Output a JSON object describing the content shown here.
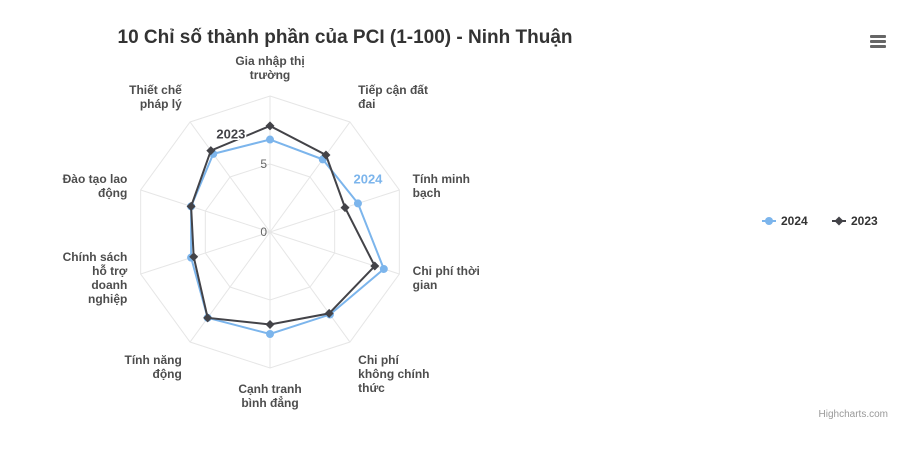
{
  "chart_data": {
    "type": "radar",
    "title": "10 Chỉ số thành phần của PCI (1-100) - Ninh Thuận",
    "categories": [
      "Gia nhập thị trường",
      "Tiếp cận đất đai",
      "Tính minh bạch",
      "Chi phí thời gian",
      "Chi phí không chính thức",
      "Cạnh tranh bình đẳng",
      "Tính năng động",
      "Chính sách hỗ trợ doanh nghiệp",
      "Đào tạo lao động",
      "Thiết chế pháp lý"
    ],
    "series": [
      {
        "name": "2024",
        "color": "#7cb5ec",
        "values": [
          6.8,
          6.6,
          6.8,
          8.8,
          7.5,
          7.5,
          7.8,
          6.1,
          6.1,
          7.1
        ]
      },
      {
        "name": "2023",
        "color": "#434348",
        "values": [
          7.8,
          7.0,
          5.8,
          8.1,
          7.4,
          6.8,
          7.8,
          5.9,
          6.1,
          7.4
        ]
      }
    ],
    "ylim": [
      0,
      10
    ],
    "yticks": [
      0,
      5
    ],
    "grid": true,
    "legend": "right",
    "credits": "Highcharts.com"
  }
}
